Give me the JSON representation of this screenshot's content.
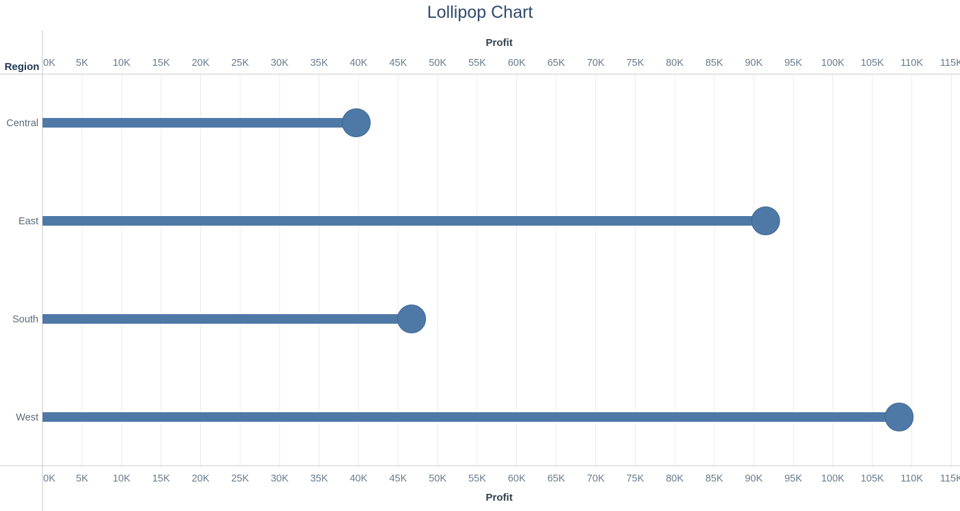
{
  "title": "Lollipop Chart",
  "chart_data": {
    "type": "lollipop",
    "title": "Lollipop Chart",
    "xlabel": "Profit",
    "row_header": "Region",
    "categories": [
      "Central",
      "East",
      "South",
      "West"
    ],
    "values": [
      39700,
      91500,
      46700,
      108400
    ],
    "xlim": [
      0,
      115000
    ],
    "x_ticks": [
      0,
      5000,
      10000,
      15000,
      20000,
      25000,
      30000,
      35000,
      40000,
      45000,
      50000,
      55000,
      60000,
      65000,
      70000,
      75000,
      80000,
      85000,
      90000,
      95000,
      100000,
      105000,
      110000,
      115000
    ],
    "x_tick_labels": [
      "0K",
      "5K",
      "10K",
      "15K",
      "20K",
      "25K",
      "30K",
      "35K",
      "40K",
      "45K",
      "50K",
      "55K",
      "60K",
      "65K",
      "70K",
      "75K",
      "80K",
      "85K",
      "90K",
      "95K",
      "100K",
      "105K",
      "110K",
      "115K"
    ],
    "axis_position": "top-and-bottom",
    "grid": true,
    "colors": {
      "mark": "#4e79a7",
      "grid": "#ececec",
      "axis": "#c8c8c8",
      "title": "#2e4a6b"
    }
  }
}
